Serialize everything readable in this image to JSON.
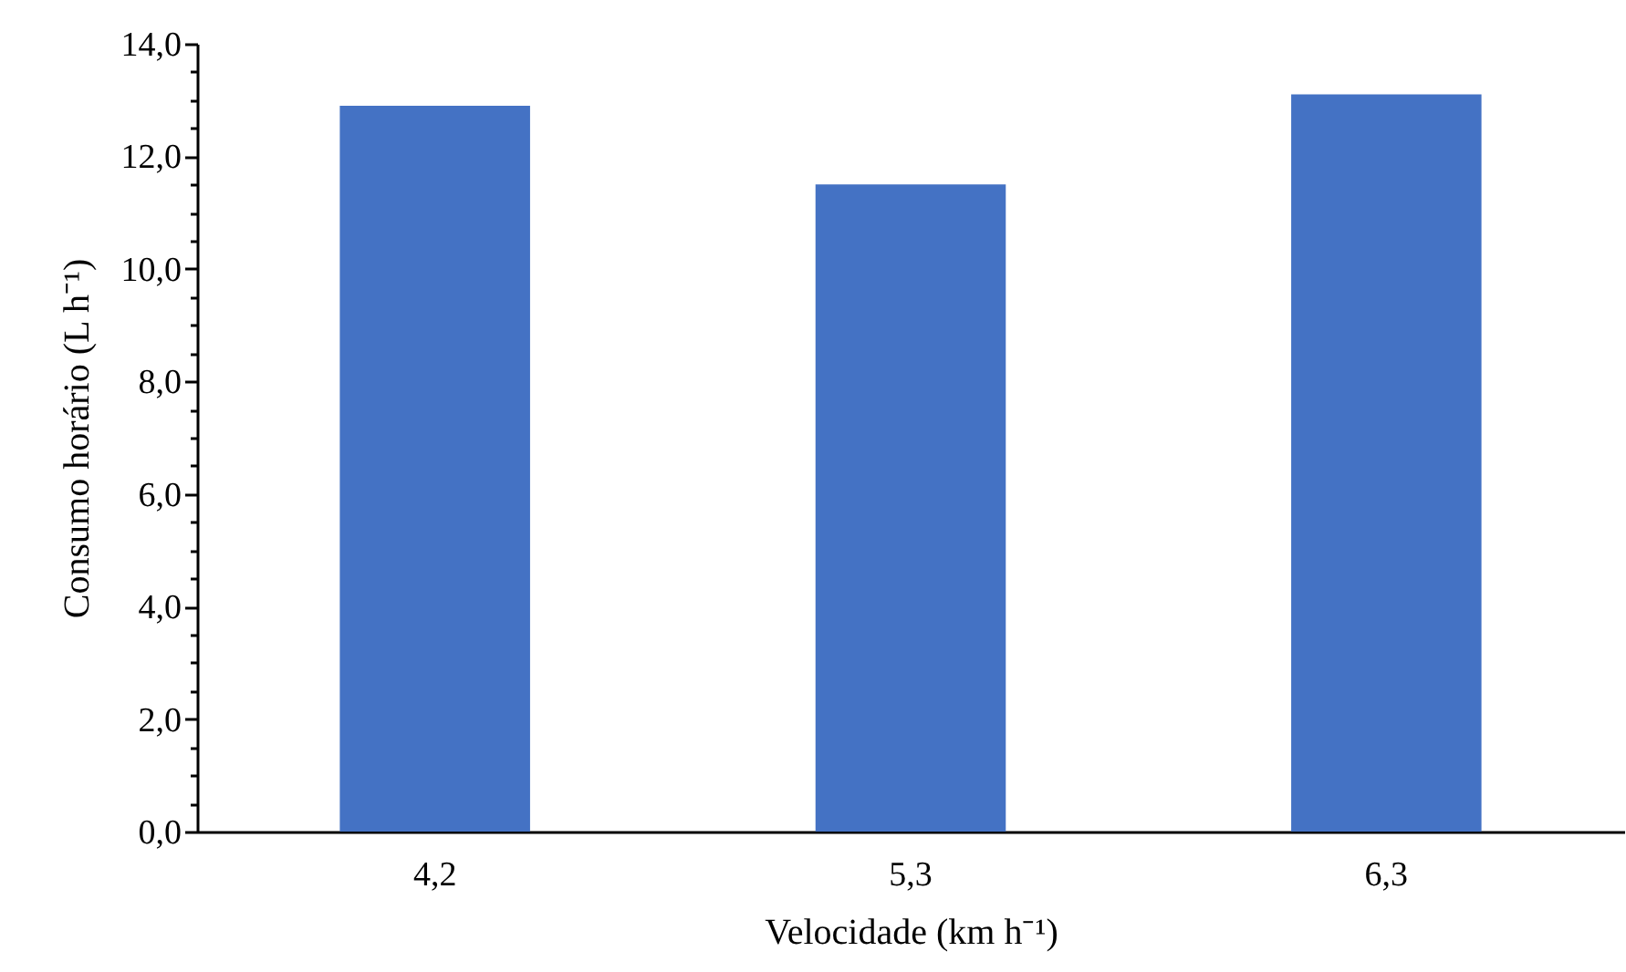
{
  "chart_data": {
    "type": "bar",
    "xlabel": "Velocidade (km h⁻¹)",
    "ylabel": "Consumo horário (L h⁻¹)",
    "categories": [
      "4,2",
      "5,3",
      "6,3"
    ],
    "values": [
      12.9,
      11.5,
      13.1
    ],
    "color": "#4472c4",
    "ylim": [
      0,
      14
    ],
    "yticks": [
      {
        "value": 0,
        "label": "0,0"
      },
      {
        "value": 0.5,
        "label": null
      },
      {
        "value": 1,
        "label": null
      },
      {
        "value": 1.5,
        "label": null
      },
      {
        "value": 2,
        "label": "2,0"
      },
      {
        "value": 2.5,
        "label": null
      },
      {
        "value": 3,
        "label": null
      },
      {
        "value": 3.5,
        "label": null
      },
      {
        "value": 4,
        "label": "4,0"
      },
      {
        "value": 4.5,
        "label": null
      },
      {
        "value": 5,
        "label": null
      },
      {
        "value": 5.5,
        "label": null
      },
      {
        "value": 6,
        "label": "6,0"
      },
      {
        "value": 6.5,
        "label": null
      },
      {
        "value": 7,
        "label": null
      },
      {
        "value": 7.5,
        "label": null
      },
      {
        "value": 8,
        "label": "8,0"
      },
      {
        "value": 8.5,
        "label": null
      },
      {
        "value": 9,
        "label": null
      },
      {
        "value": 9.5,
        "label": null
      },
      {
        "value": 10,
        "label": "10,0"
      },
      {
        "value": 10.5,
        "label": null
      },
      {
        "value": 11,
        "label": null
      },
      {
        "value": 11.5,
        "label": null
      },
      {
        "value": 12,
        "label": "12,0"
      },
      {
        "value": 12.5,
        "label": null
      },
      {
        "value": 13,
        "label": null
      },
      {
        "value": 13.5,
        "label": null
      },
      {
        "value": 14,
        "label": "14,0"
      }
    ],
    "grid": false
  }
}
